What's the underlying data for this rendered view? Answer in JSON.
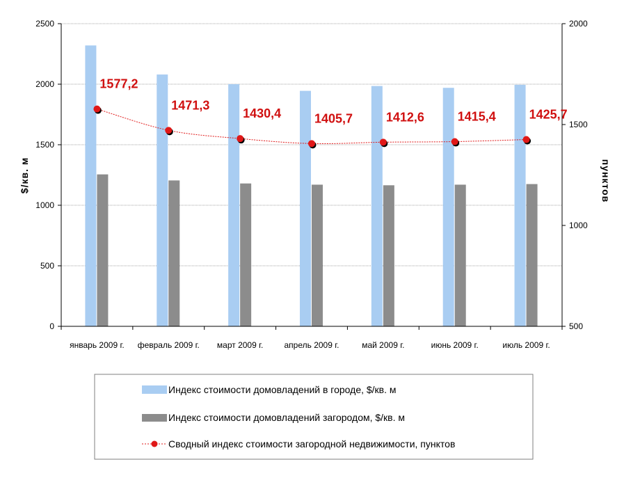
{
  "chart_data": {
    "type": "bar",
    "categories": [
      "январь 2009 г.",
      "февраль 2009 г.",
      "март 2009 г.",
      "апрель 2009 г.",
      "май 2009 г.",
      "июнь 2009 г.",
      "июль 2009 г."
    ],
    "series": [
      {
        "name": "Индекс стоимости домовладений в городе,  $/кв. м",
        "type": "bar",
        "axis": "left",
        "color": "#a9cdf2",
        "values": [
          2320,
          2080,
          2000,
          1945,
          1985,
          1970,
          1995
        ]
      },
      {
        "name": "Индекс стоимости домовладений загородом, $/кв. м",
        "type": "bar",
        "axis": "left",
        "color": "#8c8c8c",
        "values": [
          1255,
          1205,
          1180,
          1170,
          1165,
          1170,
          1175
        ]
      },
      {
        "name": "Сводный индекс стоимости загородной недвижимости, пунктов",
        "type": "line",
        "axis": "right",
        "color": "#e01818",
        "values": [
          1577.2,
          1471.3,
          1430.4,
          1405.7,
          1412.6,
          1415.4,
          1425.7
        ],
        "labels": [
          "1577,2",
          "1471,3",
          "1430,4",
          "1405,7",
          "1412,6",
          "1415,4",
          "1425,7"
        ]
      }
    ],
    "ylabel": "$/кв. м",
    "y2label": "пунктов",
    "ylim": [
      0,
      2500
    ],
    "y2lim": [
      500,
      2000
    ],
    "yticks": [
      "0",
      "500",
      "1000",
      "1500",
      "2000",
      "2500"
    ],
    "y2ticks": [
      "500",
      "1000",
      "1500",
      "2000"
    ],
    "grid": true,
    "legend_position": "bottom"
  }
}
